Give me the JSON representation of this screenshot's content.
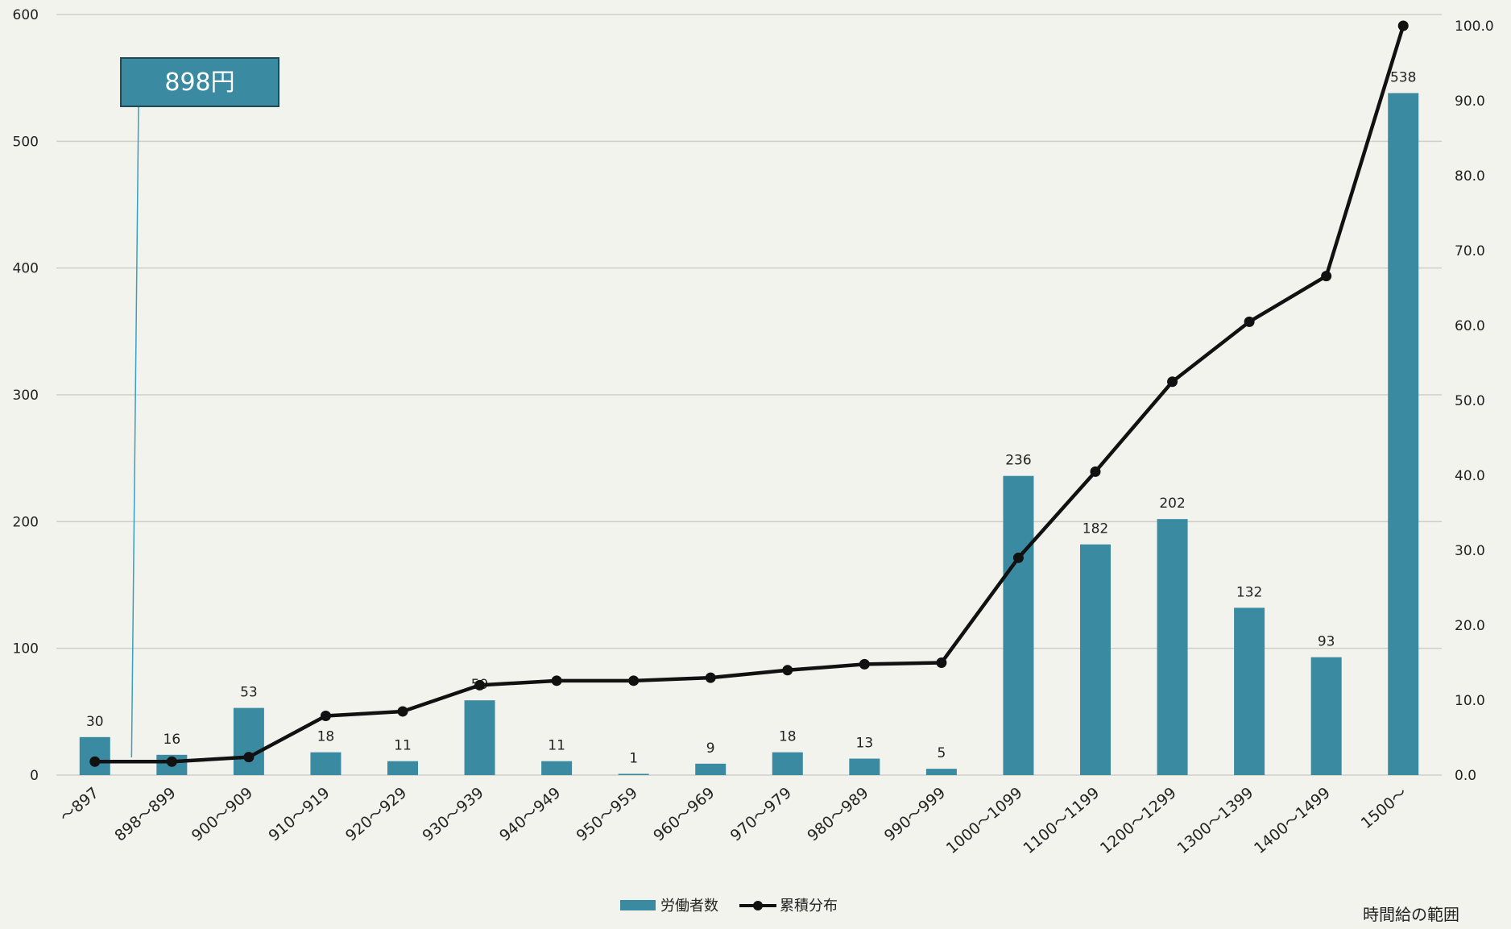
{
  "chart_data": {
    "type": "bar",
    "categories": [
      "～897",
      "898～899",
      "900～909",
      "910～919",
      "920～929",
      "930～939",
      "940～949",
      "950～959",
      "960～969",
      "970～979",
      "980～989",
      "990～999",
      "1000～1099",
      "1100～1199",
      "1200～1299",
      "1300～1399",
      "1400～1499",
      "1500～"
    ],
    "series": [
      {
        "name": "労働者数",
        "type": "bar",
        "axis": "left",
        "color": "#3a8aa2",
        "values": [
          30,
          16,
          53,
          18,
          11,
          59,
          11,
          1,
          9,
          18,
          13,
          5,
          236,
          182,
          202,
          132,
          93,
          538
        ],
        "data_labels": [
          "30",
          "16",
          "53",
          "18",
          "11",
          "59",
          "11",
          "1",
          "9",
          "18",
          "13",
          "5",
          "236",
          "182",
          "202",
          "132",
          "93",
          "538"
        ]
      },
      {
        "name": "累積分布",
        "type": "line",
        "axis": "right",
        "color": "#111111",
        "values": [
          1.8,
          1.8,
          2.4,
          7.9,
          8.5,
          12.0,
          12.6,
          12.6,
          13.0,
          14.0,
          14.8,
          15.0,
          29.0,
          40.5,
          52.5,
          60.5,
          66.6,
          100.0
        ]
      }
    ],
    "y_left": {
      "ylim": [
        0,
        600
      ],
      "ticks": [
        "0",
        "100",
        "200",
        "300",
        "400",
        "500",
        "600"
      ]
    },
    "y_right": {
      "ylim": [
        0,
        100
      ],
      "ticks": [
        "0.0",
        "10.0",
        "20.0",
        "30.0",
        "40.0",
        "50.0",
        "60.0",
        "70.0",
        "80.0",
        "90.0",
        "100.0"
      ]
    },
    "xlabel": "時間給の範囲",
    "title": "",
    "grid": true,
    "legend_position": "bottom-center",
    "annotation": {
      "text": "898円",
      "category": "898～899",
      "box_color": "#3a8aa2",
      "border_color": "#1f4a57"
    }
  }
}
